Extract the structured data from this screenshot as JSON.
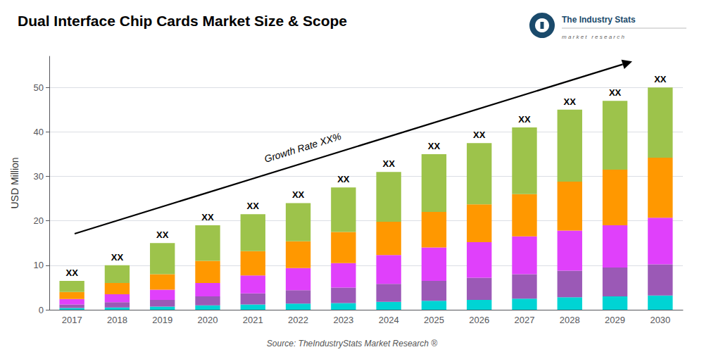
{
  "chart_data": {
    "type": "bar",
    "title": "Dual Interface Chip Cards Market Size & Scope",
    "ylabel": "USD Million",
    "categories": [
      2017,
      2018,
      2019,
      2020,
      2021,
      2022,
      2023,
      2024,
      2025,
      2026,
      2027,
      2028,
      2029,
      2030
    ],
    "stacked": true,
    "series": [
      {
        "color": "#00D4D4",
        "values": [
          0.4,
          0.5,
          0.7,
          1.0,
          1.2,
          1.4,
          1.5,
          1.8,
          2.0,
          2.2,
          2.5,
          2.8,
          3.0,
          3.2
        ]
      },
      {
        "color": "#9B59B6",
        "values": [
          0.8,
          1.2,
          1.5,
          2.0,
          2.5,
          3.0,
          3.5,
          4.0,
          4.5,
          5.0,
          5.5,
          6.0,
          6.5,
          7.0
        ]
      },
      {
        "color": "#E040FB",
        "values": [
          1.2,
          1.8,
          2.3,
          3.0,
          4.0,
          5.0,
          5.5,
          6.5,
          7.5,
          8.0,
          8.5,
          9.0,
          9.5,
          10.5
        ]
      },
      {
        "color": "#FF9800",
        "values": [
          1.6,
          2.5,
          3.5,
          5.0,
          5.5,
          6.0,
          7.0,
          7.5,
          8.0,
          8.5,
          9.5,
          11.0,
          12.5,
          13.5
        ]
      },
      {
        "color": "#9DC34B",
        "values": [
          2.5,
          4.0,
          7.0,
          8.0,
          8.3,
          8.6,
          10.0,
          11.2,
          13.0,
          13.8,
          15.0,
          16.2,
          15.5,
          15.8
        ]
      }
    ],
    "value_labels": [
      "XX",
      "XX",
      "XX",
      "XX",
      "XX",
      "XX",
      "XX",
      "XX",
      "XX",
      "XX",
      "XX",
      "XX",
      "XX",
      "XX"
    ],
    "annotations": [
      "Growth Rate XX%",
      "Source: TheIndustryStats Market Research ®",
      "The Industry Stats",
      "m a r k e t   r e s e a r c h"
    ],
    "ylim": [
      0,
      57
    ],
    "yticks": [
      0,
      10,
      20,
      30,
      40,
      50
    ],
    "grid": true
  }
}
